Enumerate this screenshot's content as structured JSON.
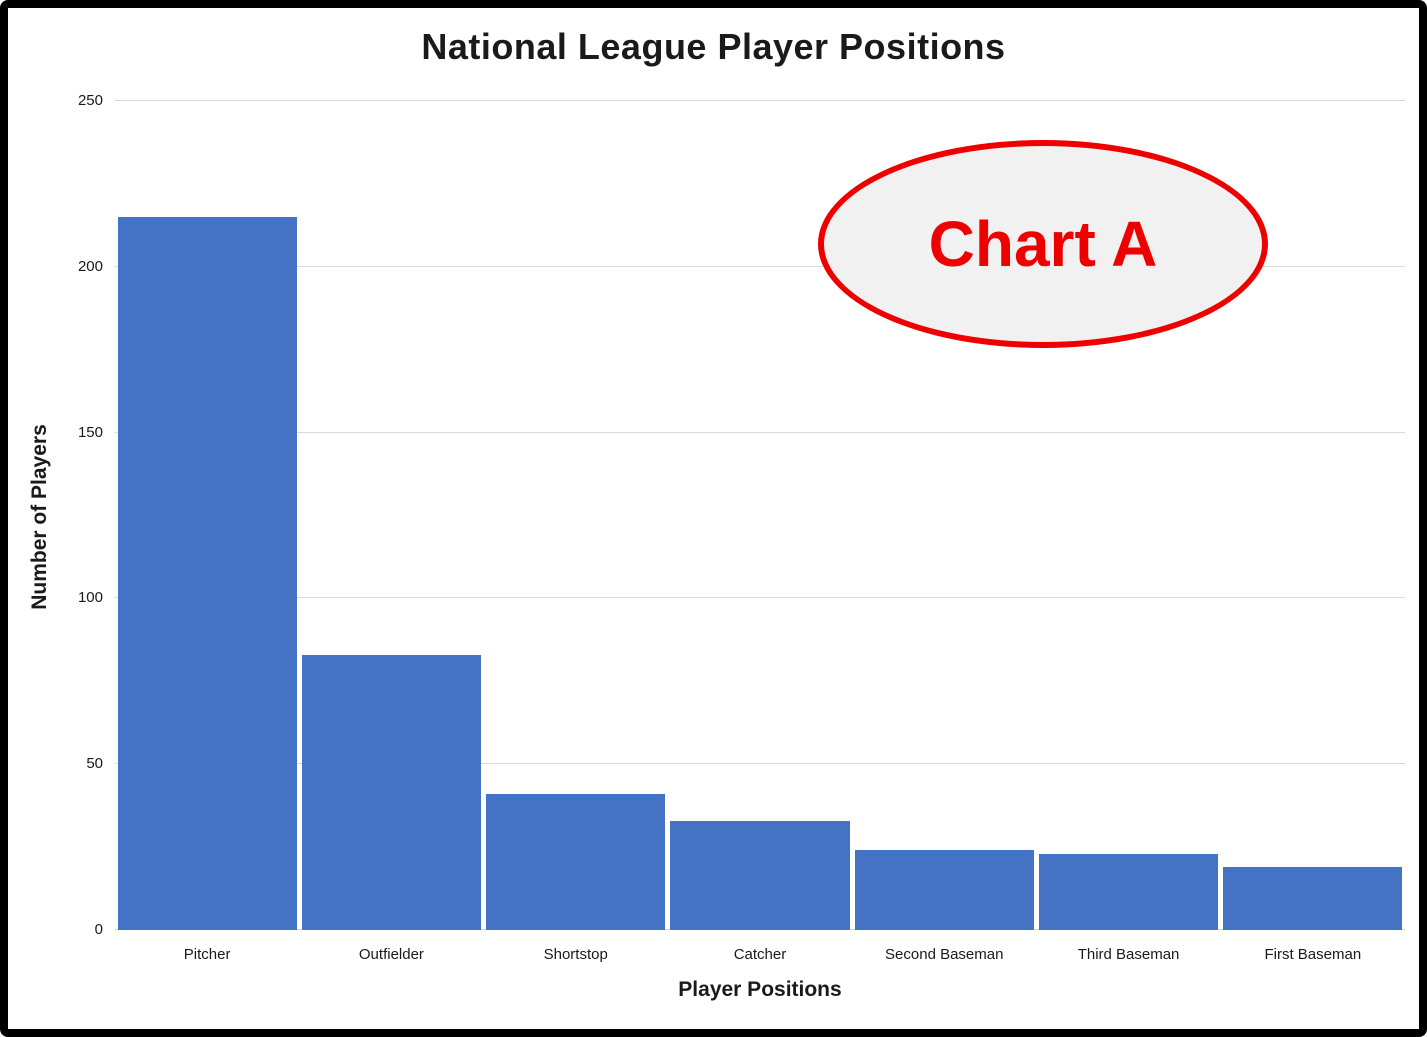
{
  "chart_data": {
    "type": "bar",
    "title": "National League Player Positions",
    "xlabel": "Player Positions",
    "ylabel": "Number of Players",
    "categories": [
      "Pitcher",
      "Outfielder",
      "Shortstop",
      "Catcher",
      "Second Baseman",
      "Third Baseman",
      "First Baseman"
    ],
    "values": [
      215,
      83,
      41,
      33,
      24,
      23,
      19
    ],
    "ylim": [
      0,
      250
    ],
    "yticks": [
      0,
      50,
      100,
      150,
      200,
      250
    ],
    "grid": true,
    "legend": "none",
    "bar_color": "#4472c4",
    "gridline_color": "#d9d9d9"
  },
  "annotation": {
    "label": "Chart A",
    "color": "#ee0000"
  }
}
